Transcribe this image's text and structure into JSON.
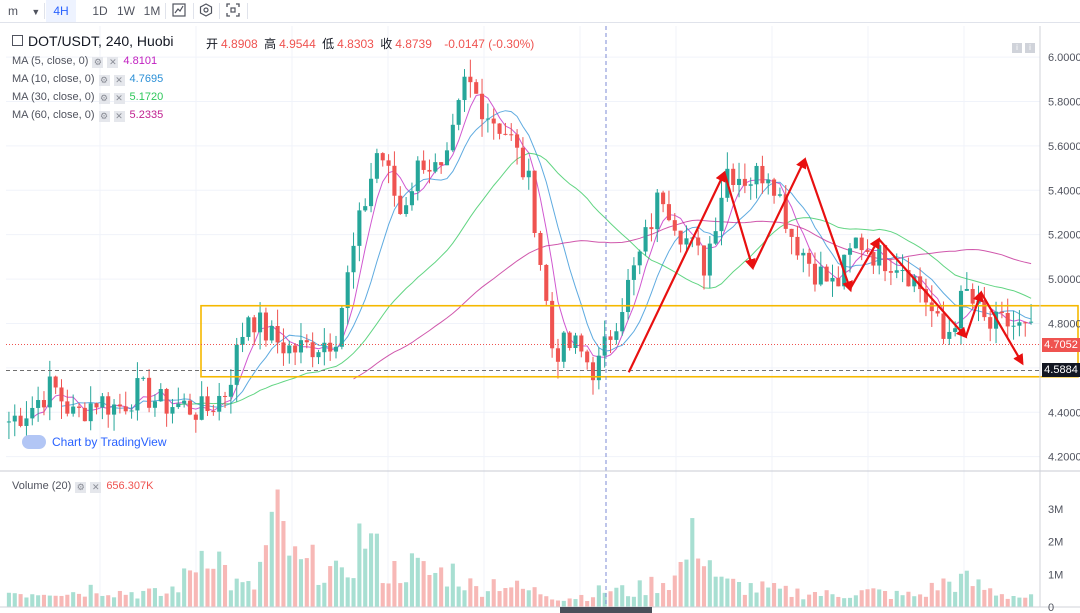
{
  "toolbar": {
    "interval_select": "m",
    "chevron": "chevron-down-icon",
    "timeframes": [
      {
        "label": "4H",
        "active": true
      },
      {
        "label": "1D",
        "active": false
      },
      {
        "label": "1W",
        "active": false
      },
      {
        "label": "1M",
        "active": false
      }
    ],
    "tools": [
      "chart-type-icon",
      "settings-hex-icon",
      "fullscreen-icon"
    ]
  },
  "header": {
    "symbol": "DOT/USDT, 240, Huobi",
    "ohlc": {
      "open_label": "开",
      "open": "4.8908",
      "high_label": "高",
      "high": "4.9544",
      "low_label": "低",
      "low": "4.8303",
      "close_label": "收",
      "close": "4.8739",
      "change": "-0.0147 (-0.30%)"
    }
  },
  "indicators": [
    {
      "label": "MA (5, close, 0)",
      "value": "4.8101",
      "color": "#c020c0"
    },
    {
      "label": "MA (10, close, 0)",
      "value": "4.7695",
      "color": "#2a8fd6"
    },
    {
      "label": "MA (30, close, 0)",
      "value": "5.1720",
      "color": "#2ec75a"
    },
    {
      "label": "MA (60, close, 0)",
      "value": "5.2335",
      "color": "#c02090"
    }
  ],
  "volume_legend": {
    "label": "Volume (20)",
    "value": "656.307K"
  },
  "watermark": "Chart by TradingView",
  "price_tags": {
    "current": "4.7052",
    "crosshair": "4.5884"
  },
  "colors": {
    "up": "#26a69a",
    "down": "#ef5350",
    "ma5": "#c020c0",
    "ma10": "#2a8fd6",
    "ma30": "#2ec75a",
    "ma60": "#c02090",
    "zone": "#f5b800",
    "arrow": "#e81010"
  },
  "chart_data": {
    "type": "candlestick",
    "symbol": "DOT/USDT",
    "interval": "240",
    "exchange": "Huobi",
    "y_ticks": [
      "6.0000",
      "5.8000",
      "5.6000",
      "5.4000",
      "5.2000",
      "5.0000",
      "4.8000",
      "4.6000",
      "4.4000",
      "4.2000"
    ],
    "ylim": [
      4.14,
      6.14
    ],
    "volume_ticks": [
      "3M",
      "2M",
      "1M",
      "0"
    ],
    "volume_ylim": [
      0,
      3.8
    ],
    "key_points": [
      4.36,
      4.42,
      4.52,
      4.38,
      4.46,
      4.42,
      4.5,
      4.44,
      4.43,
      4.4,
      4.5,
      4.85,
      4.74,
      4.68,
      4.7,
      4.74,
      5.2,
      5.6,
      5.3,
      5.55,
      5.45,
      5.9,
      5.75,
      5.65,
      5.4,
      4.68,
      4.7,
      4.58,
      4.85,
      5.1,
      5.4,
      5.2,
      5.06,
      5.5,
      5.45,
      5.5,
      5.2,
      5.05,
      4.96,
      5.18,
      5.1,
      5.08,
      4.95,
      4.72,
      4.94,
      4.78,
      4.8,
      4.75
    ],
    "volume_key_points": [
      0.5,
      0.5,
      0.6,
      0.5,
      0.7,
      0.5,
      0.5,
      0.4,
      1.0,
      2.4,
      0.8,
      0.6,
      3.0,
      1.3,
      1.5,
      0.9,
      2.6,
      1.1,
      1.4,
      1.1,
      1.2,
      0.6,
      0.9,
      0.6,
      0.5,
      0.3,
      0.4,
      0.6,
      0.5,
      0.8,
      1.0,
      2.5,
      0.8,
      0.7,
      0.6,
      0.5,
      0.5,
      0.4,
      0.5,
      0.5,
      0.4,
      0.4,
      0.8,
      0.9,
      0.6,
      0.4,
      0.3
    ],
    "zone": {
      "top": 4.88,
      "bottom": 4.56,
      "color": "#f5b800"
    },
    "crosshair_price": 4.5884,
    "current_price": 4.7052,
    "annotation_arrows": [
      {
        "from": [
          28.5,
          4.58
        ],
        "to": [
          32.9,
          5.48
        ]
      },
      {
        "from": [
          32.9,
          5.48
        ],
        "to": [
          34.2,
          5.05
        ]
      },
      {
        "from": [
          34.2,
          5.05
        ],
        "to": [
          36.6,
          5.54
        ]
      },
      {
        "from": [
          36.6,
          5.54
        ],
        "to": [
          38.7,
          4.95
        ]
      },
      {
        "from": [
          38.7,
          4.96
        ],
        "to": [
          40.0,
          5.18
        ]
      },
      {
        "from": [
          40.0,
          5.18
        ],
        "to": [
          44.0,
          4.74
        ]
      },
      {
        "from": [
          44.0,
          4.74
        ],
        "to": [
          44.7,
          4.94
        ]
      },
      {
        "from": [
          44.7,
          4.94
        ],
        "to": [
          46.6,
          4.62
        ]
      }
    ]
  }
}
